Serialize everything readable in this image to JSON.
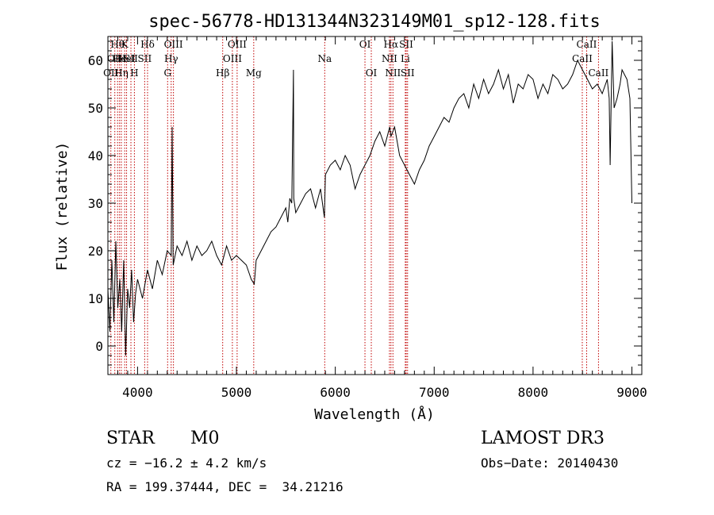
{
  "chart_data": {
    "type": "line",
    "title": "spec-56778-HD131344N323149M01_sp12-128.fits",
    "xlabel": "Wavelength (Å)",
    "ylabel": "Flux (relative)",
    "xlim": [
      3700,
      9100
    ],
    "ylim": [
      -6,
      65
    ],
    "x_ticks": [
      4000,
      5000,
      6000,
      7000,
      8000,
      9000
    ],
    "y_ticks": [
      0,
      10,
      20,
      30,
      40,
      50,
      60
    ],
    "x_tick_labels": [
      "4000",
      "5000",
      "6000",
      "7000",
      "8000",
      "9000"
    ],
    "y_tick_labels": [
      "0",
      "10",
      "20",
      "30",
      "40",
      "50",
      "60"
    ],
    "series": [
      {
        "name": "spectrum",
        "x": [
          3700,
          3720,
          3740,
          3760,
          3780,
          3800,
          3820,
          3840,
          3860,
          3880,
          3900,
          3920,
          3940,
          3960,
          3980,
          4000,
          4050,
          4100,
          4150,
          4200,
          4250,
          4300,
          4340,
          4350,
          4360,
          4400,
          4450,
          4500,
          4550,
          4600,
          4650,
          4700,
          4750,
          4800,
          4850,
          4900,
          4950,
          5000,
          5050,
          5100,
          5150,
          5180,
          5200,
          5250,
          5300,
          5350,
          5400,
          5450,
          5500,
          5520,
          5540,
          5560,
          5577,
          5580,
          5600,
          5650,
          5700,
          5750,
          5800,
          5850,
          5890,
          5900,
          5950,
          6000,
          6050,
          6100,
          6150,
          6200,
          6250,
          6300,
          6350,
          6400,
          6450,
          6500,
          6550,
          6563,
          6600,
          6650,
          6700,
          6750,
          6800,
          6850,
          6900,
          6950,
          7000,
          7050,
          7100,
          7150,
          7200,
          7250,
          7300,
          7350,
          7400,
          7450,
          7500,
          7550,
          7600,
          7650,
          7700,
          7750,
          7800,
          7850,
          7900,
          7950,
          8000,
          8050,
          8100,
          8150,
          8200,
          8250,
          8300,
          8350,
          8400,
          8450,
          8500,
          8550,
          8600,
          8650,
          8700,
          8750,
          8770,
          8780,
          8800,
          8820,
          8850,
          8880,
          8900,
          8950,
          8980,
          9000
        ],
        "y": [
          12,
          3,
          18,
          5,
          22,
          8,
          14,
          3,
          18,
          -2,
          12,
          8,
          16,
          5,
          11,
          14,
          10,
          16,
          12,
          18,
          15,
          20,
          19,
          46,
          17,
          21,
          19,
          22,
          18,
          21,
          19,
          20,
          22,
          19,
          17,
          21,
          18,
          19,
          18,
          17,
          14,
          13,
          18,
          20,
          22,
          24,
          25,
          27,
          29,
          26,
          31,
          30,
          58,
          31,
          28,
          30,
          32,
          33,
          29,
          33,
          27,
          36,
          38,
          39,
          37,
          40,
          38,
          33,
          36,
          38,
          40,
          43,
          45,
          42,
          46,
          44,
          46,
          40,
          38,
          36,
          34,
          37,
          39,
          42,
          44,
          46,
          48,
          47,
          50,
          52,
          53,
          50,
          55,
          52,
          56,
          53,
          55,
          58,
          54,
          57,
          51,
          55,
          54,
          57,
          56,
          52,
          55,
          53,
          57,
          56,
          54,
          55,
          57,
          60,
          58,
          56,
          54,
          55,
          53,
          56,
          52,
          38,
          64,
          50,
          52,
          55,
          58,
          56,
          52,
          30
        ]
      }
    ],
    "line_labels": [
      {
        "x": 3730,
        "row": 2,
        "text": "OII"
      },
      {
        "x": 3770,
        "row": 1,
        "text": "OII"
      },
      {
        "x": 3798,
        "row": 0,
        "text": "Hθ"
      },
      {
        "x": 3818,
        "row": 1,
        "text": "He"
      },
      {
        "x": 3836,
        "row": 2,
        "text": "Hη"
      },
      {
        "x": 3870,
        "row": 0,
        "text": "K"
      },
      {
        "x": 3889,
        "row": 1,
        "text": "HeI"
      },
      {
        "x": 3933,
        "row": 1,
        "text": "SII"
      },
      {
        "x": 3968,
        "row": 2,
        "text": "H"
      },
      {
        "x": 4101,
        "row": 0,
        "text": "Hδ"
      },
      {
        "x": 4072,
        "row": 1,
        "text": "SII"
      },
      {
        "x": 4304,
        "row": 2,
        "text": "G"
      },
      {
        "x": 4340,
        "row": 1,
        "text": "Hγ"
      },
      {
        "x": 4363,
        "row": 0,
        "text": "OIII"
      },
      {
        "x": 4861,
        "row": 2,
        "text": "Hβ"
      },
      {
        "x": 4959,
        "row": 1,
        "text": "OIII"
      },
      {
        "x": 5007,
        "row": 0,
        "text": "OIII"
      },
      {
        "x": 5175,
        "row": 2,
        "text": "Mg"
      },
      {
        "x": 5893,
        "row": 1,
        "text": "Na"
      },
      {
        "x": 6300,
        "row": 0,
        "text": "OI"
      },
      {
        "x": 6364,
        "row": 2,
        "text": "OI"
      },
      {
        "x": 6548,
        "row": 1,
        "text": "NII"
      },
      {
        "x": 6563,
        "row": 0,
        "text": "Hα"
      },
      {
        "x": 6583,
        "row": 2,
        "text": "NII"
      },
      {
        "x": 6708,
        "row": 1,
        "text": "Li"
      },
      {
        "x": 6717,
        "row": 0,
        "text": "SII"
      },
      {
        "x": 6731,
        "row": 2,
        "text": "SII"
      },
      {
        "x": 8498,
        "row": 1,
        "text": "CaII"
      },
      {
        "x": 8542,
        "row": 0,
        "text": "CaII"
      },
      {
        "x": 8662,
        "row": 2,
        "text": "CaII"
      }
    ]
  },
  "info": {
    "object_class": "STAR",
    "subclass": "M0",
    "survey": "LAMOST DR3",
    "cz": "cz = −16.2 ± 4.2 km/s",
    "obs_date": "Obs−Date: 20140430",
    "coords": "RA = 199.37444, DEC =  34.21216"
  }
}
